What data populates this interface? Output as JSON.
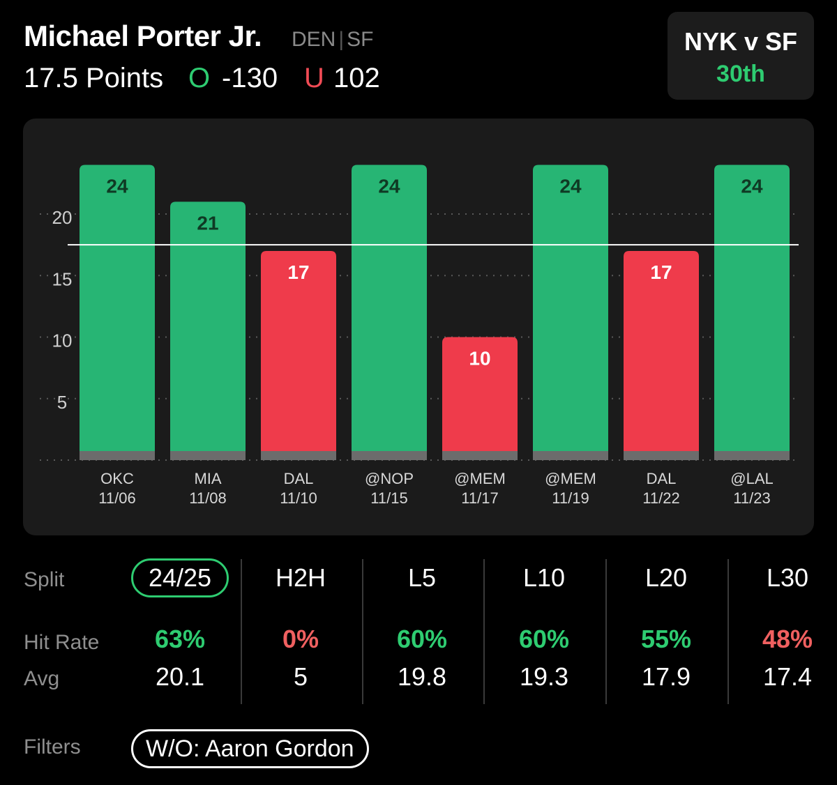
{
  "header": {
    "player_name": "Michael Porter Jr.",
    "team": "DEN",
    "position": "SF",
    "line_label": "17.5 Points",
    "over_symbol": "O",
    "over_odds": "-130",
    "under_symbol": "U",
    "under_odds": "102"
  },
  "matchup": {
    "title": "NYK v SF",
    "rank": "30th"
  },
  "colors": {
    "over": "#27b574",
    "under": "#ef3b4b",
    "accent": "#2ecc71"
  },
  "chart_data": {
    "type": "bar",
    "categories": [
      "OKC",
      "MIA",
      "DAL",
      "@NOP",
      "@MEM",
      "@MEM",
      "DAL",
      "@LAL"
    ],
    "dates": [
      "11/06",
      "11/08",
      "11/10",
      "11/15",
      "11/17",
      "11/19",
      "11/22",
      "11/23"
    ],
    "values": [
      24,
      21,
      17,
      24,
      10,
      24,
      17,
      24
    ],
    "value_labels": [
      "24",
      "21",
      "17",
      "24",
      "10",
      "24",
      "17",
      "24"
    ],
    "yticks": [
      5,
      10,
      15,
      20
    ],
    "ytick_labels": [
      "5",
      "10",
      "15",
      "20"
    ],
    "ylim": [
      0,
      25.5
    ],
    "threshold": 17.5,
    "grid": true,
    "title": "",
    "xlabel": "",
    "ylabel": ""
  },
  "splits": {
    "row_label": "Split",
    "hit_rate_label": "Hit Rate",
    "avg_label": "Avg",
    "columns": [
      {
        "label": "24/25",
        "hit_rate": "63%",
        "avg": "20.1",
        "selected": true,
        "good": true
      },
      {
        "label": "H2H",
        "hit_rate": "0%",
        "avg": "5",
        "selected": false,
        "good": false
      },
      {
        "label": "L5",
        "hit_rate": "60%",
        "avg": "19.8",
        "selected": false,
        "good": true
      },
      {
        "label": "L10",
        "hit_rate": "60%",
        "avg": "19.3",
        "selected": false,
        "good": true
      },
      {
        "label": "L20",
        "hit_rate": "55%",
        "avg": "17.9",
        "selected": false,
        "good": true
      },
      {
        "label": "L30",
        "hit_rate": "48%",
        "avg": "17.4",
        "selected": false,
        "good": false
      }
    ]
  },
  "filters": {
    "label": "Filters",
    "chip": "W/O: Aaron Gordon"
  }
}
